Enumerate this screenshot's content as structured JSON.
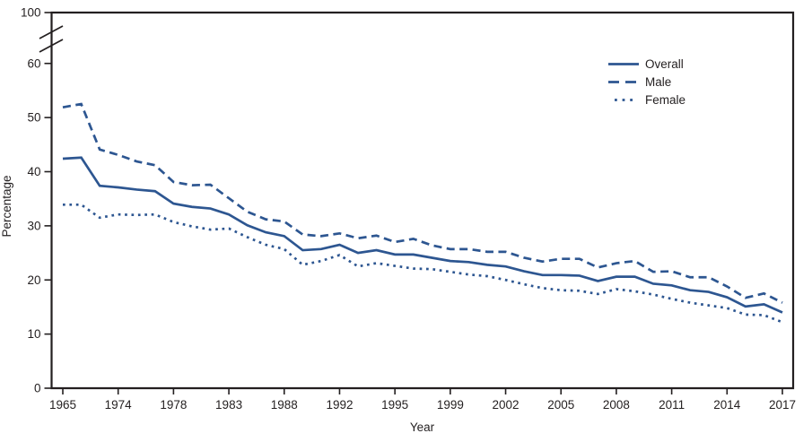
{
  "figure": {
    "xlabel": "Year",
    "ylabel": "Percentage",
    "line_color": "#2d5691",
    "axis_color": "#231f20",
    "background": "#ffffff"
  },
  "legend": {
    "items": [
      {
        "label": "Overall",
        "style": "solid",
        "swatch_icon": "solid-line-icon"
      },
      {
        "label": "Male",
        "style": "dashed",
        "swatch_icon": "dashed-line-icon"
      },
      {
        "label": "Female",
        "style": "dotted",
        "swatch_icon": "dotted-line-icon"
      }
    ]
  },
  "chart_data": {
    "type": "line",
    "title": "",
    "xlabel": "Year",
    "ylabel": "Percentage",
    "grid": false,
    "legend_position": "upper right",
    "y_axis_break": true,
    "y_ticks": [
      0,
      10,
      20,
      30,
      40,
      50,
      60,
      100
    ],
    "ylim_displayed": [
      0,
      60
    ],
    "x_tick_labels": [
      "1965",
      "1974",
      "1978",
      "1983",
      "1988",
      "1992",
      "1995",
      "1999",
      "2002",
      "2005",
      "2008",
      "2011",
      "2014",
      "2017"
    ],
    "x": [
      1965,
      1966,
      1970,
      1974,
      1976,
      1977,
      1978,
      1979,
      1980,
      1983,
      1985,
      1987,
      1988,
      1990,
      1991,
      1992,
      1993,
      1994,
      1995,
      1997,
      1998,
      1999,
      2000,
      2001,
      2002,
      2003,
      2004,
      2005,
      2006,
      2007,
      2008,
      2009,
      2010,
      2011,
      2012,
      2013,
      2014,
      2015,
      2016,
      2017
    ],
    "series": [
      {
        "name": "Overall",
        "style": "solid",
        "values": [
          42.4,
          42.6,
          37.4,
          37.1,
          36.7,
          36.4,
          34.1,
          33.5,
          33.2,
          32.1,
          30.1,
          28.8,
          28.1,
          25.5,
          25.7,
          26.5,
          25.0,
          25.5,
          24.7,
          24.7,
          24.1,
          23.5,
          23.3,
          22.8,
          22.5,
          21.6,
          20.9,
          20.9,
          20.8,
          19.8,
          20.6,
          20.6,
          19.3,
          19.0,
          18.1,
          17.8,
          16.8,
          15.1,
          15.5,
          14.0
        ]
      },
      {
        "name": "Male",
        "style": "dashed",
        "values": [
          51.9,
          52.5,
          44.1,
          43.1,
          41.9,
          41.2,
          38.1,
          37.5,
          37.6,
          35.1,
          32.6,
          31.2,
          30.8,
          28.4,
          28.1,
          28.6,
          27.7,
          28.2,
          27.0,
          27.6,
          26.4,
          25.7,
          25.7,
          25.2,
          25.2,
          24.1,
          23.4,
          23.9,
          23.9,
          22.3,
          23.1,
          23.5,
          21.5,
          21.6,
          20.5,
          20.5,
          18.8,
          16.7,
          17.5,
          15.8
        ]
      },
      {
        "name": "Female",
        "style": "dotted",
        "values": [
          33.9,
          33.9,
          31.5,
          32.1,
          32.0,
          32.1,
          30.7,
          29.9,
          29.3,
          29.5,
          27.9,
          26.5,
          25.7,
          22.8,
          23.5,
          24.6,
          22.5,
          23.1,
          22.6,
          22.1,
          22.0,
          21.5,
          21.0,
          20.7,
          20.0,
          19.2,
          18.5,
          18.1,
          18.0,
          17.4,
          18.3,
          17.9,
          17.3,
          16.5,
          15.8,
          15.3,
          14.8,
          13.6,
          13.5,
          12.2
        ]
      }
    ]
  }
}
